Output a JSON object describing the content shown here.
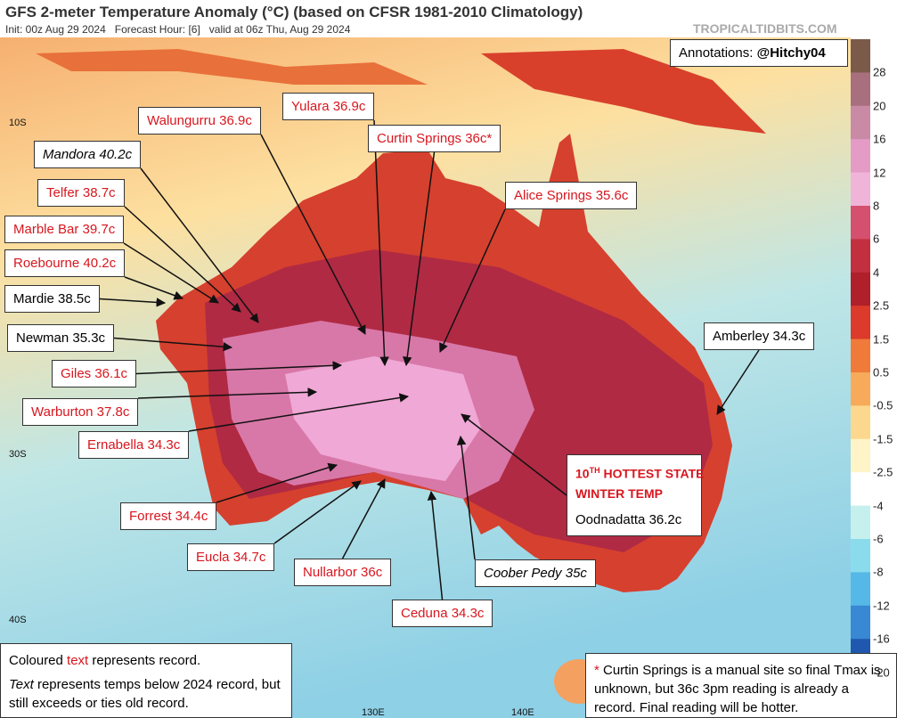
{
  "header": {
    "title": "GFS 2-meter Temperature Anomaly (°C) (based on CFSR 1981-2010 Climatology)",
    "subtitle": "Init: 00z Aug 29 2024   Forecast Hour: [6]   valid at 06z Thu, Aug 29 2024",
    "credit": "TROPICALTIDBITS.COM"
  },
  "annotation_credit": {
    "prefix": "Annotations: ",
    "handle": "@Hitchy04"
  },
  "lat_labels": [
    "10S",
    "30S",
    "40S"
  ],
  "lon_labels": [
    "130E",
    "140E"
  ],
  "colorbar": {
    "labels": [
      28,
      20,
      16,
      12,
      8,
      6,
      4,
      2.5,
      1.5,
      0.5,
      -0.5,
      -1.5,
      -2.5,
      -4,
      -6,
      -8,
      -12,
      -16,
      -20
    ],
    "colors": [
      "#7b5a4a",
      "#a8707e",
      "#c98aa6",
      "#e49cc6",
      "#f0b4d8",
      "#d4506e",
      "#c2303f",
      "#b0202a",
      "#dc3a2a",
      "#ef7a3a",
      "#f7aa5a",
      "#fcd88e",
      "#fff4c8",
      "#ffffff",
      "#c6f0ee",
      "#8adcec",
      "#56b8e6",
      "#3888d4",
      "#2058b0",
      "#7a5ac4"
    ]
  },
  "stations": [
    {
      "label": "Walungurru 36.9c",
      "record": true,
      "italic": false
    },
    {
      "label": "Yulara 36.9c",
      "record": true,
      "italic": false
    },
    {
      "label": "Curtin Springs 36c*",
      "record": true,
      "italic": false
    },
    {
      "label": "Mandora 40.2c",
      "record": false,
      "italic": true
    },
    {
      "label": "Alice Springs 35.6c",
      "record": true,
      "italic": false
    },
    {
      "label": "Telfer 38.7c",
      "record": true,
      "italic": false
    },
    {
      "label": "Marble Bar 39.7c",
      "record": true,
      "italic": false
    },
    {
      "label": "Roebourne 40.2c",
      "record": true,
      "italic": false
    },
    {
      "label": "Mardie 38.5c",
      "record": false,
      "italic": false
    },
    {
      "label": "Newman 35.3c",
      "record": false,
      "italic": false
    },
    {
      "label": "Giles 36.1c",
      "record": true,
      "italic": false
    },
    {
      "label": "Warburton 37.8c",
      "record": true,
      "italic": false
    },
    {
      "label": "Ernabella 34.3c",
      "record": true,
      "italic": false
    },
    {
      "label": "Forrest 34.4c",
      "record": true,
      "italic": false
    },
    {
      "label": "Eucla 34.7c",
      "record": true,
      "italic": false
    },
    {
      "label": "Nullarbor 36c",
      "record": true,
      "italic": false
    },
    {
      "label": "Ceduna 34.3c",
      "record": true,
      "italic": false
    },
    {
      "label": "Coober Pedy 35c",
      "record": false,
      "italic": true
    },
    {
      "label": "Oodnadatta 36.2c",
      "record": false,
      "italic": false
    },
    {
      "label": "Amberley 34.3c",
      "record": false,
      "italic": false
    }
  ],
  "hottest": {
    "rank": "10",
    "rank_suffix": "TH",
    "line1_rest": " HOTTEST STATE",
    "line2": "WINTER TEMP"
  },
  "notes": {
    "record_note": {
      "pre": "Coloured ",
      "word": "text",
      "post": " represents record."
    },
    "below_note": {
      "word": "Text",
      "post": " represents temps below 2024 record, but still exceeds or ties old record."
    },
    "curtin_note": {
      "star": "*",
      "text": " Curtin Springs is a manual site so final Tmax is unknown, but 36c 3pm reading is already a record. Final reading will be hotter."
    }
  }
}
